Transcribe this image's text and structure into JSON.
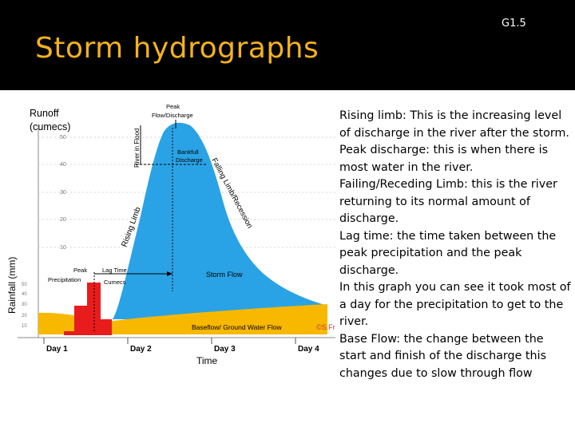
{
  "slide": {
    "title": "Storm hydrographs",
    "code": "G1.5"
  },
  "colors": {
    "header_bg": "#000000",
    "title": "#f5b21b",
    "storm_flow": "#2aa3e6",
    "baseflow": "#f9b800",
    "rainfall_bars": "#e81c1c"
  },
  "figure": {
    "y_axis_title_line1": "Runoff",
    "y_axis_title_line2": "(cumecs)",
    "rain_axis_title": "Rainfall (mm)",
    "x_axis_title": "Time",
    "runoff_ticks": [
      "50",
      "40",
      "30",
      "20",
      "10"
    ],
    "rain_ticks": [
      "50",
      "40",
      "30",
      "20",
      "10"
    ],
    "day_labels": [
      "Day 1",
      "Day 2",
      "Day 3",
      "Day 4"
    ],
    "peak_label_line1": "Peak",
    "peak_label_line2": "Flow/Discharge",
    "bankfull_line1": "Bankfull",
    "bankfull_line2": "Discharge",
    "rising_limb": "Rising Limb",
    "falling_limb": "Falling Limb/Recession",
    "river_in_flood": "River in Flood",
    "peak_precip_line1": "Peak",
    "peak_precip_line2": "Precipitation",
    "lag_time": "Lag Time",
    "cumecs_partial": "Cumecs",
    "storm_flow": "Storm Flow",
    "baseflow": "Baseflow/ Ground Water Flow",
    "watermark": "©S.Fr"
  },
  "body": {
    "paragraphs": [
      "Rising limb: This is the increasing level of discharge in the river after the storm.",
      "Peak discharge: this is when there is most water in the river.",
      "Failing/Receding Limb: this is the river returning to its normal amount of discharge.",
      "Lag time: the time taken between the peak precipitation and the peak discharge.",
      "In this graph you can see it took most of a day for the precipitation to get to the river.",
      "Base Flow: the change between the start and finish of the discharge this changes due to slow through flow"
    ]
  }
}
